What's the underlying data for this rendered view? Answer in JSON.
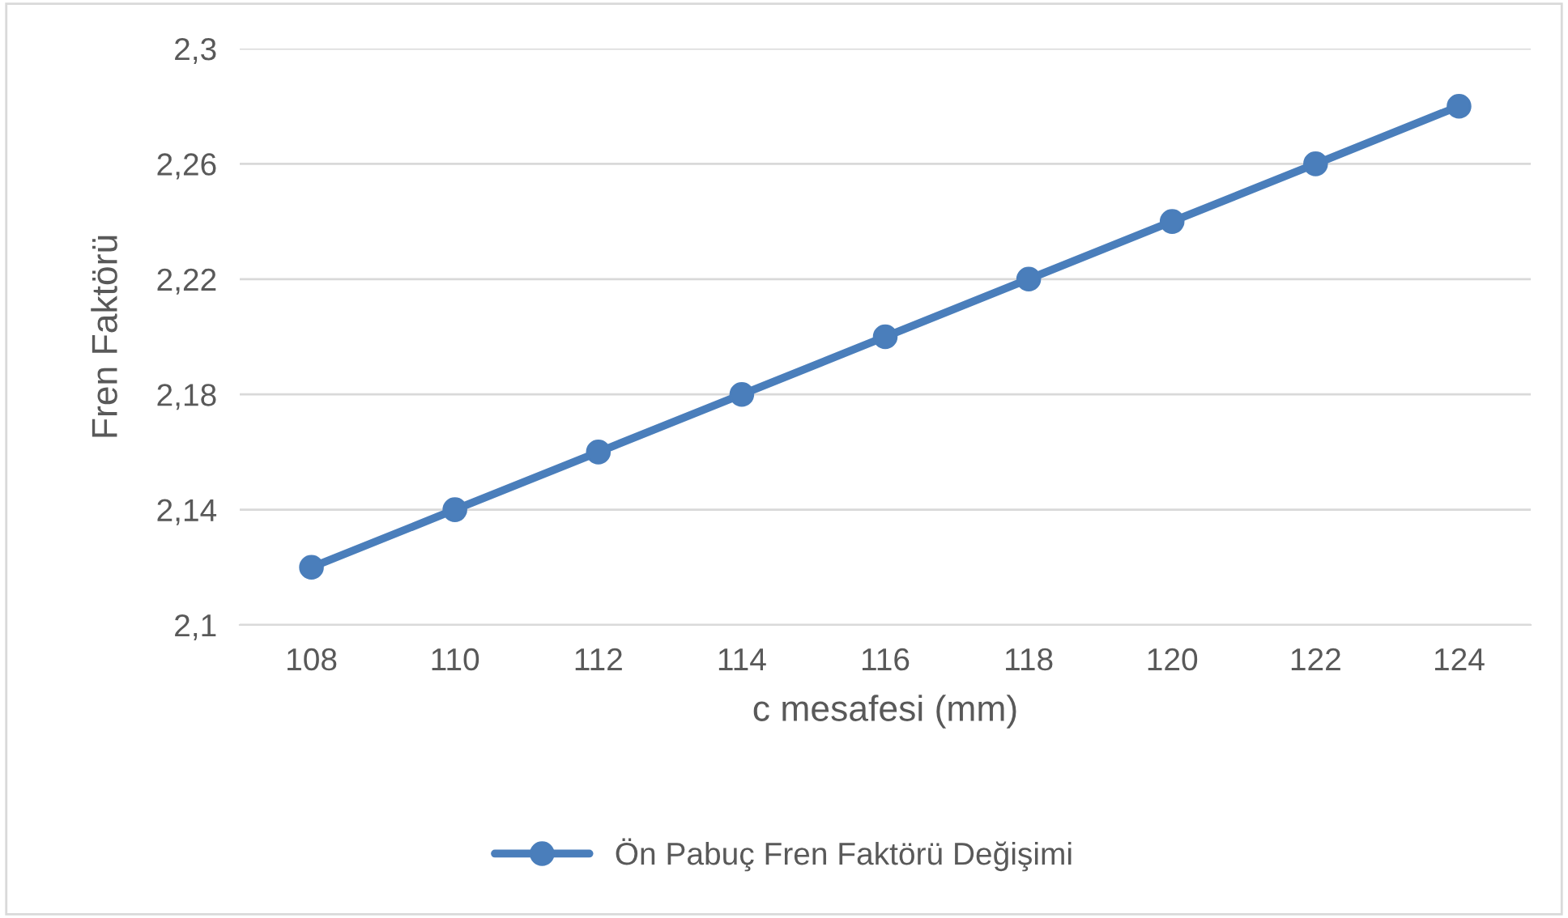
{
  "chart_data": {
    "type": "line",
    "xlabel": "c mesafesi (mm)",
    "ylabel": "Fren Faktörü",
    "categories": [
      "108",
      "110",
      "112",
      "114",
      "116",
      "118",
      "120",
      "122",
      "124"
    ],
    "series": [
      {
        "name": "Ön Pabuç Fren Faktörü Değişimi",
        "color": "#4a7ebb",
        "values": [
          2.12,
          2.14,
          2.16,
          2.18,
          2.2,
          2.22,
          2.24,
          2.26,
          2.28
        ]
      }
    ],
    "ylim": [
      2.1,
      2.3
    ],
    "yticks": [
      {
        "value": 2.1,
        "label": "2,1"
      },
      {
        "value": 2.14,
        "label": "2,14"
      },
      {
        "value": 2.18,
        "label": "2,18"
      },
      {
        "value": 2.22,
        "label": "2,22"
      },
      {
        "value": 2.26,
        "label": "2,26"
      },
      {
        "value": 2.3,
        "label": "2,3"
      }
    ],
    "grid": "y",
    "legend": "bottom",
    "marker": "circle",
    "line_style": "solid"
  }
}
